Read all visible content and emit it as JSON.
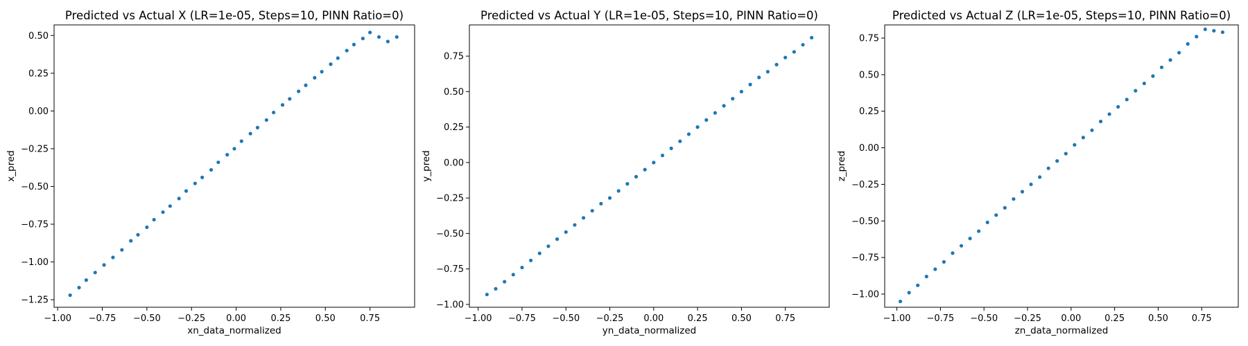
{
  "chart_data": [
    {
      "type": "scatter",
      "title": "Predicted vs Actual X (LR=1e-05, Steps=10, PINN Ratio=0)",
      "xlabel": "xn_data_normalized",
      "ylabel": "x_pred",
      "xlim": [
        -1.02,
        1.0
      ],
      "ylim": [
        -1.3,
        0.57
      ],
      "xticks": [
        -1.0,
        -0.75,
        -0.5,
        -0.25,
        0.0,
        0.25,
        0.5,
        0.75
      ],
      "xtick_labels": [
        "−1.00",
        "−0.75",
        "−0.50",
        "−0.25",
        "0.00",
        "0.25",
        "0.50",
        "0.75"
      ],
      "yticks": [
        -1.25,
        -1.0,
        -0.75,
        -0.5,
        -0.25,
        0.0,
        0.25,
        0.5
      ],
      "ytick_labels": [
        "−1.25",
        "−1.00",
        "−0.75",
        "−0.50",
        "−0.25",
        "0.00",
        "0.25",
        "0.50"
      ],
      "grid": false,
      "color": "#1f77b4",
      "x": [
        -0.93,
        -0.88,
        -0.84,
        -0.79,
        -0.74,
        -0.69,
        -0.64,
        -0.59,
        -0.55,
        -0.5,
        -0.46,
        -0.41,
        -0.37,
        -0.32,
        -0.28,
        -0.23,
        -0.19,
        -0.14,
        -0.1,
        -0.05,
        -0.01,
        0.03,
        0.08,
        0.12,
        0.17,
        0.21,
        0.26,
        0.3,
        0.35,
        0.39,
        0.44,
        0.48,
        0.53,
        0.57,
        0.62,
        0.66,
        0.71,
        0.75,
        0.8,
        0.85,
        0.9
      ],
      "y": [
        -1.22,
        -1.17,
        -1.12,
        -1.07,
        -1.02,
        -0.97,
        -0.92,
        -0.86,
        -0.82,
        -0.77,
        -0.72,
        -0.67,
        -0.63,
        -0.58,
        -0.53,
        -0.48,
        -0.44,
        -0.39,
        -0.34,
        -0.29,
        -0.25,
        -0.2,
        -0.15,
        -0.11,
        -0.06,
        -0.01,
        0.04,
        0.08,
        0.13,
        0.17,
        0.22,
        0.26,
        0.31,
        0.35,
        0.4,
        0.44,
        0.48,
        0.52,
        0.49,
        0.46,
        0.49
      ]
    },
    {
      "type": "scatter",
      "title": "Predicted vs Actual Y (LR=1e-05, Steps=10, PINN Ratio=0)",
      "xlabel": "yn_data_normalized",
      "ylabel": "y_pred",
      "xlim": [
        -1.05,
        1.0
      ],
      "ylim": [
        -1.02,
        0.97
      ],
      "xticks": [
        -1.0,
        -0.75,
        -0.5,
        -0.25,
        0.0,
        0.25,
        0.5,
        0.75
      ],
      "xtick_labels": [
        "−1.00",
        "−0.75",
        "−0.50",
        "−0.25",
        "0.00",
        "0.25",
        "0.50",
        "0.75"
      ],
      "yticks": [
        -1.0,
        -0.75,
        -0.5,
        -0.25,
        0.0,
        0.25,
        0.5,
        0.75
      ],
      "ytick_labels": [
        "−1.00",
        "−0.75",
        "−0.50",
        "−0.25",
        "0.00",
        "0.25",
        "0.50",
        "0.75"
      ],
      "grid": false,
      "color": "#1f77b4",
      "x": [
        -0.95,
        -0.9,
        -0.85,
        -0.8,
        -0.75,
        -0.7,
        -0.65,
        -0.6,
        -0.55,
        -0.5,
        -0.45,
        -0.4,
        -0.35,
        -0.3,
        -0.25,
        -0.2,
        -0.15,
        -0.1,
        -0.05,
        0.0,
        0.05,
        0.1,
        0.15,
        0.2,
        0.25,
        0.3,
        0.35,
        0.4,
        0.45,
        0.5,
        0.55,
        0.6,
        0.65,
        0.7,
        0.75,
        0.8,
        0.85,
        0.9
      ],
      "y": [
        -0.93,
        -0.89,
        -0.84,
        -0.79,
        -0.74,
        -0.69,
        -0.64,
        -0.59,
        -0.54,
        -0.49,
        -0.44,
        -0.39,
        -0.34,
        -0.29,
        -0.25,
        -0.2,
        -0.15,
        -0.1,
        -0.05,
        0.0,
        0.05,
        0.1,
        0.15,
        0.2,
        0.25,
        0.3,
        0.35,
        0.4,
        0.45,
        0.5,
        0.55,
        0.6,
        0.64,
        0.69,
        0.74,
        0.78,
        0.83,
        0.88
      ]
    },
    {
      "type": "scatter",
      "title": "Predicted vs Actual Z (LR=1e-05, Steps=10, PINN Ratio=0)",
      "xlabel": "zn_data_normalized",
      "ylabel": "z_pred",
      "xlim": [
        -1.07,
        0.96
      ],
      "ylim": [
        -1.09,
        0.84
      ],
      "xticks": [
        -1.0,
        -0.75,
        -0.5,
        -0.25,
        0.0,
        0.25,
        0.5,
        0.75
      ],
      "xtick_labels": [
        "−1.00",
        "−0.75",
        "−0.50",
        "−0.25",
        "0.00",
        "0.25",
        "0.50",
        "0.75"
      ],
      "yticks": [
        -1.0,
        -0.75,
        -0.5,
        -0.25,
        0.0,
        0.25,
        0.5,
        0.75
      ],
      "ytick_labels": [
        "−1.00",
        "−0.75",
        "−0.50",
        "−0.25",
        "0.00",
        "0.25",
        "0.50",
        "0.75"
      ],
      "grid": false,
      "color": "#1f77b4",
      "x": [
        -0.98,
        -0.93,
        -0.88,
        -0.83,
        -0.78,
        -0.73,
        -0.68,
        -0.63,
        -0.58,
        -0.53,
        -0.48,
        -0.43,
        -0.38,
        -0.33,
        -0.28,
        -0.23,
        -0.18,
        -0.13,
        -0.08,
        -0.03,
        0.02,
        0.07,
        0.12,
        0.17,
        0.22,
        0.27,
        0.32,
        0.37,
        0.42,
        0.47,
        0.52,
        0.57,
        0.62,
        0.67,
        0.72,
        0.77,
        0.82,
        0.87
      ],
      "y": [
        -1.05,
        -0.99,
        -0.94,
        -0.88,
        -0.83,
        -0.78,
        -0.72,
        -0.67,
        -0.62,
        -0.57,
        -0.51,
        -0.46,
        -0.41,
        -0.35,
        -0.3,
        -0.25,
        -0.2,
        -0.14,
        -0.09,
        -0.04,
        0.02,
        0.07,
        0.12,
        0.18,
        0.23,
        0.28,
        0.33,
        0.39,
        0.44,
        0.49,
        0.55,
        0.6,
        0.65,
        0.71,
        0.76,
        0.81,
        0.8,
        0.79
      ]
    }
  ]
}
